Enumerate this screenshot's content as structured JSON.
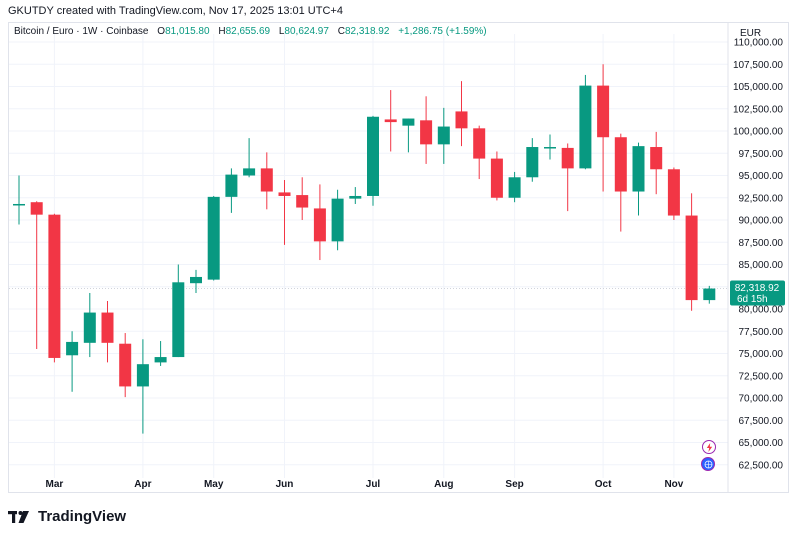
{
  "header": {
    "created_by": "GKUTDY created with TradingView.com, Nov 17, 2025 13:01 UTC+4"
  },
  "legend": {
    "symbol": "Bitcoin / Euro · 1W · Coinbase",
    "o_label": "O",
    "o_value": "81,015.80",
    "h_label": "H",
    "h_value": "82,655.69",
    "l_label": "L",
    "l_value": "80,624.97",
    "c_label": "C",
    "c_value": "82,318.92",
    "change": "+1,286.75 (+1.59%)"
  },
  "price_scale": {
    "currency": "EUR",
    "last_price": "82,318.92",
    "countdown": "6d 15h"
  },
  "footer": {
    "brand": "TradingView"
  },
  "colors": {
    "up": "#089981",
    "down": "#f23645",
    "grid": "#f0f3fa",
    "axis_text": "#131722",
    "crosshair": "#d1d4dc"
  },
  "icons": [
    "lightning-icon",
    "globe-icon"
  ],
  "chart_data": {
    "type": "candlestick",
    "title": "Bitcoin / Euro · 1W · Coinbase",
    "ylim": [
      60000,
      110000
    ],
    "y_ticks": [
      62500,
      65000,
      67500,
      70000,
      72500,
      75000,
      77500,
      80000,
      82500,
      85000,
      87500,
      90000,
      92500,
      95000,
      97500,
      100000,
      102500,
      105000,
      107500,
      110000
    ],
    "y_tick_labels": [
      "62,500.00",
      "65,000.00",
      "67,500.00",
      "70,000.00",
      "72,500.00",
      "75,000.00",
      "77,500.00",
      "80,000.00",
      "82,500.00",
      "85,000.00",
      "87,500.00",
      "90,000.00",
      "92,500.00",
      "95,000.00",
      "97,500.00",
      "100,000.00",
      "102,500.00",
      "105,000.00",
      "107,500.00",
      "110,000.00"
    ],
    "x_month_labels": [
      "Mar",
      "Apr",
      "May",
      "Jun",
      "Jul",
      "Aug",
      "Sep",
      "Oct",
      "Nov"
    ],
    "x_month_positions": [
      2.0,
      7.0,
      11.0,
      15.0,
      20.0,
      24.0,
      28.0,
      33.0,
      37.0
    ],
    "candles": [
      {
        "o": 91800,
        "h": 95000,
        "l": 89500,
        "c": 91800
      },
      {
        "o": 92000,
        "h": 92100,
        "l": 75500,
        "c": 90600
      },
      {
        "o": 90600,
        "h": 90700,
        "l": 74000,
        "c": 74500
      },
      {
        "o": 74800,
        "h": 77500,
        "l": 70700,
        "c": 76300
      },
      {
        "o": 76200,
        "h": 81800,
        "l": 74600,
        "c": 79600
      },
      {
        "o": 79600,
        "h": 80900,
        "l": 74000,
        "c": 76200
      },
      {
        "o": 76100,
        "h": 77300,
        "l": 70100,
        "c": 71300
      },
      {
        "o": 71300,
        "h": 76600,
        "l": 66000,
        "c": 73800
      },
      {
        "o": 74000,
        "h": 76400,
        "l": 73600,
        "c": 74600
      },
      {
        "o": 74600,
        "h": 85000,
        "l": 74600,
        "c": 83000
      },
      {
        "o": 82900,
        "h": 84400,
        "l": 81800,
        "c": 83600
      },
      {
        "o": 83300,
        "h": 92700,
        "l": 83200,
        "c": 92600
      },
      {
        "o": 92600,
        "h": 95800,
        "l": 90800,
        "c": 95100
      },
      {
        "o": 95000,
        "h": 99200,
        "l": 94800,
        "c": 95800
      },
      {
        "o": 95800,
        "h": 97600,
        "l": 91200,
        "c": 93200
      },
      {
        "o": 93100,
        "h": 94500,
        "l": 87200,
        "c": 92700
      },
      {
        "o": 92800,
        "h": 94800,
        "l": 90000,
        "c": 91400
      },
      {
        "o": 91300,
        "h": 94000,
        "l": 85500,
        "c": 87600
      },
      {
        "o": 87600,
        "h": 93400,
        "l": 86600,
        "c": 92400
      },
      {
        "o": 92400,
        "h": 93700,
        "l": 91800,
        "c": 92700
      },
      {
        "o": 92700,
        "h": 101700,
        "l": 91600,
        "c": 101600
      },
      {
        "o": 101300,
        "h": 104600,
        "l": 97700,
        "c": 101000
      },
      {
        "o": 100600,
        "h": 101400,
        "l": 97600,
        "c": 101400
      },
      {
        "o": 101200,
        "h": 103900,
        "l": 96300,
        "c": 98500
      },
      {
        "o": 98500,
        "h": 102600,
        "l": 96300,
        "c": 100500
      },
      {
        "o": 102200,
        "h": 105600,
        "l": 98300,
        "c": 100300
      },
      {
        "o": 100300,
        "h": 100600,
        "l": 94600,
        "c": 96900
      },
      {
        "o": 96900,
        "h": 97700,
        "l": 92200,
        "c": 92500
      },
      {
        "o": 92500,
        "h": 95400,
        "l": 92000,
        "c": 94800
      },
      {
        "o": 94800,
        "h": 99200,
        "l": 94300,
        "c": 98200
      },
      {
        "o": 98200,
        "h": 99600,
        "l": 96800,
        "c": 98200
      },
      {
        "o": 98100,
        "h": 98600,
        "l": 91000,
        "c": 95800
      },
      {
        "o": 95800,
        "h": 106300,
        "l": 95700,
        "c": 105100
      },
      {
        "o": 105100,
        "h": 107500,
        "l": 93200,
        "c": 99300
      },
      {
        "o": 99300,
        "h": 99700,
        "l": 88700,
        "c": 93200
      },
      {
        "o": 93200,
        "h": 98700,
        "l": 90500,
        "c": 98300
      },
      {
        "o": 98200,
        "h": 99900,
        "l": 92900,
        "c": 95700
      },
      {
        "o": 95700,
        "h": 95900,
        "l": 90000,
        "c": 90500
      },
      {
        "o": 90500,
        "h": 93000,
        "l": 79800,
        "c": 81000
      },
      {
        "o": 81000,
        "h": 82600,
        "l": 80600,
        "c": 82300
      }
    ]
  }
}
